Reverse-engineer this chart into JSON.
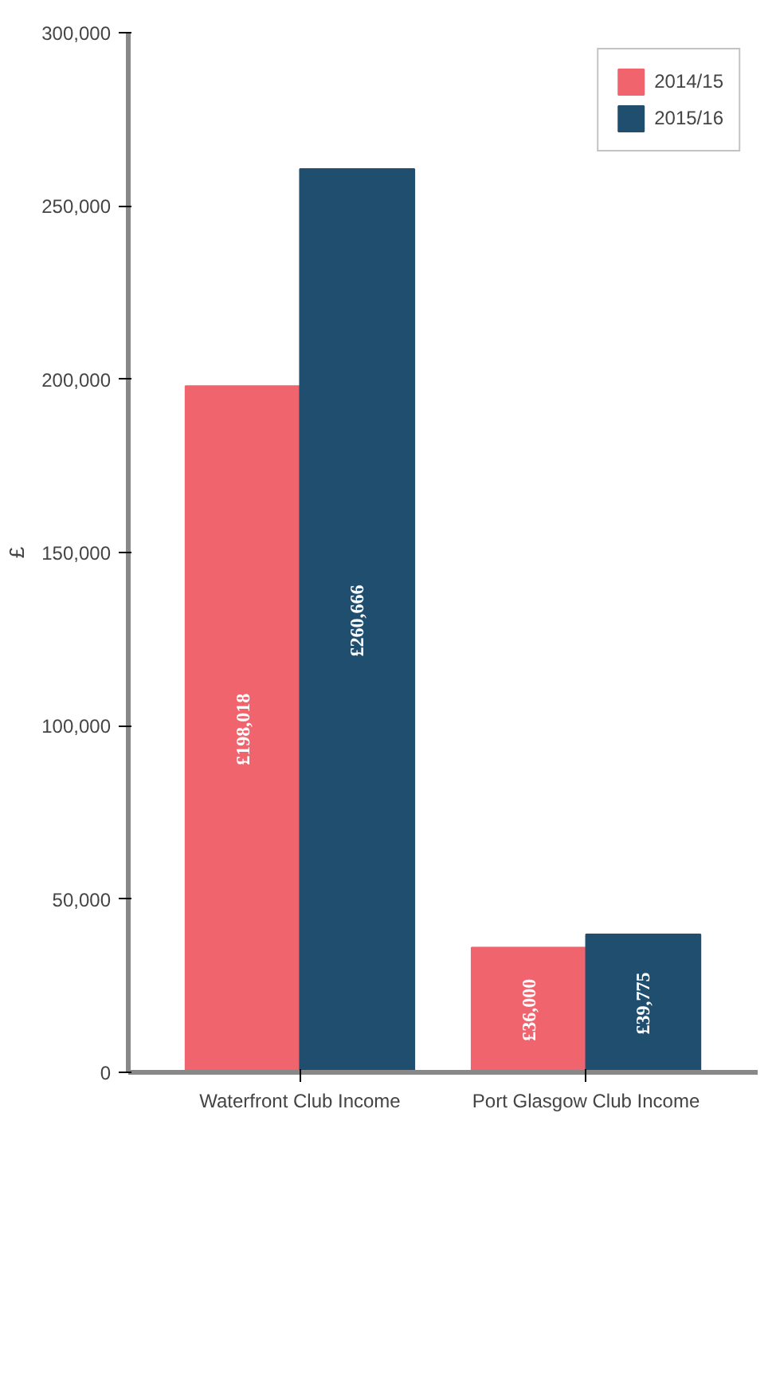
{
  "chart_data": {
    "type": "bar",
    "ylabel": "£",
    "categories": [
      "Waterfront Club Income",
      "Port Glasgow Club Income"
    ],
    "series": [
      {
        "name": "2014/15",
        "color": "#f0646e",
        "values": [
          198018,
          36000
        ],
        "value_labels": [
          "£198,018",
          "£36,000"
        ]
      },
      {
        "name": "2015/16",
        "color": "#1f4e6e",
        "values": [
          260666,
          39775
        ],
        "value_labels": [
          "£260,666",
          "£39,775"
        ]
      }
    ],
    "ylim": [
      0,
      300000
    ],
    "yticks": [
      {
        "value": 0,
        "label": "0"
      },
      {
        "value": 50000,
        "label": "50,000"
      },
      {
        "value": 100000,
        "label": "100,000"
      },
      {
        "value": 150000,
        "label": "150,000"
      },
      {
        "value": 200000,
        "label": "200,000"
      },
      {
        "value": 250000,
        "label": "250,000"
      },
      {
        "value": 300000,
        "label": "300,000"
      }
    ],
    "grid": false,
    "legend": "top right"
  }
}
